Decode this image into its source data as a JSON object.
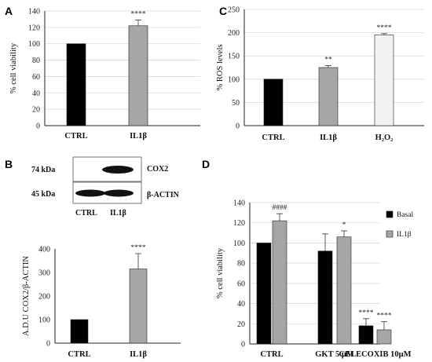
{
  "colors": {
    "ctrl": "#000000",
    "il1b": "#a6a6a6",
    "h2o2": "#f2f2f2",
    "basal": "#000000",
    "bar_edge": "#222222",
    "axis": "#222222",
    "grid": "#d9d9d9"
  },
  "chart_data": [
    {
      "panel": "A",
      "type": "bar",
      "ylabel": "% cell viability",
      "ylim": [
        0,
        140
      ],
      "yticks": [
        0,
        20,
        40,
        60,
        80,
        100,
        120,
        140
      ],
      "grid": true,
      "categories": [
        "CTRL",
        "IL1β"
      ],
      "values": [
        100,
        122
      ],
      "errors": [
        0,
        7
      ],
      "annotations": [
        "",
        "****"
      ],
      "bar_colors": [
        "#000000",
        "#a6a6a6"
      ]
    },
    {
      "panel": "C",
      "type": "bar",
      "ylabel": "% ROS levels",
      "ylim": [
        0,
        250
      ],
      "yticks": [
        0,
        50,
        100,
        150,
        200,
        250
      ],
      "grid": true,
      "categories": [
        "CTRL",
        "IL1β",
        "H₂O₂"
      ],
      "values": [
        100,
        125,
        195
      ],
      "errors": [
        0,
        4,
        3
      ],
      "annotations": [
        "",
        "**",
        "****"
      ],
      "bar_colors": [
        "#000000",
        "#a6a6a6",
        "#f2f2f2"
      ]
    },
    {
      "panel": "B",
      "type": "bar",
      "ylabel": "A.D.U COX2/β-ACTIN",
      "ylim": [
        0,
        400
      ],
      "yticks": [
        0,
        100,
        200,
        300,
        400
      ],
      "grid": false,
      "categories": [
        "CTRL",
        "IL1β"
      ],
      "values": [
        100,
        315
      ],
      "errors": [
        0,
        65
      ],
      "annotations": [
        "",
        "****"
      ],
      "bar_colors": [
        "#000000",
        "#a6a6a6"
      ]
    },
    {
      "panel": "D",
      "type": "bar",
      "ylabel": "% cell viability",
      "ylim": [
        0,
        140
      ],
      "yticks": [
        0,
        20,
        40,
        60,
        80,
        100,
        120,
        140
      ],
      "grid": true,
      "categories": [
        "CTRL",
        "GKT 5 μM",
        "CELECOXIB 10μM"
      ],
      "legend_position": "right",
      "series": [
        {
          "name": "Basal",
          "values": [
            100,
            92,
            18
          ],
          "errors": [
            0,
            17,
            7
          ],
          "annotations": [
            "",
            "",
            "****"
          ],
          "color": "#000000"
        },
        {
          "name": "IL1β",
          "values": [
            122,
            106,
            14
          ],
          "errors": [
            7,
            6,
            8
          ],
          "annotations": [
            "####",
            "*",
            "****"
          ],
          "color": "#a6a6a6"
        }
      ]
    }
  ],
  "blot": {
    "panel": "B",
    "markers": [
      "74 kDa",
      "45 kDa"
    ],
    "proteins": [
      "COX2",
      "β-ACTIN"
    ],
    "lanes": [
      "CTRL",
      "IL1β"
    ]
  }
}
